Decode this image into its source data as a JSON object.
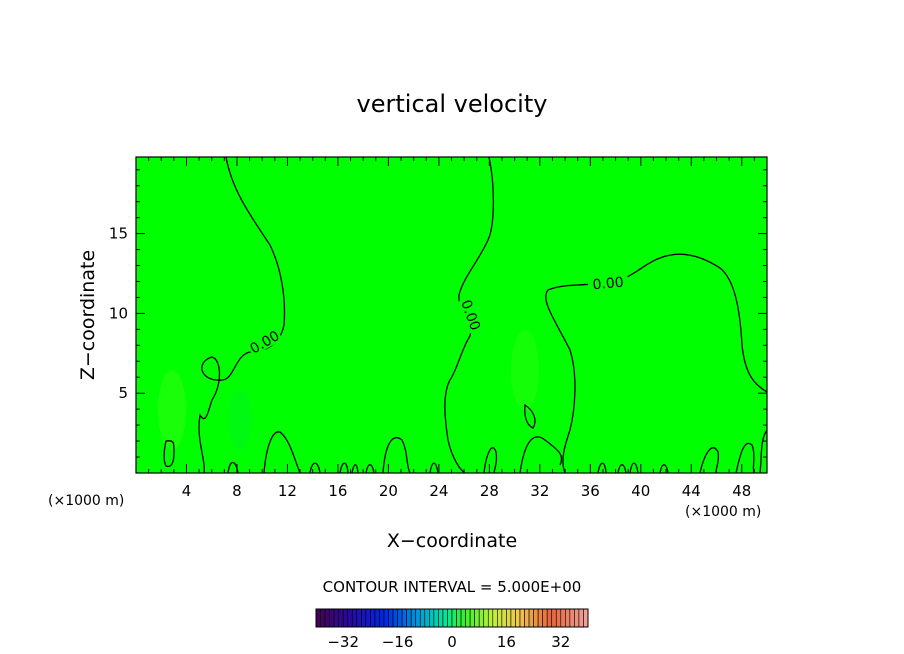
{
  "chart_data": {
    "type": "heatmap",
    "title": "vertical velocity",
    "xlabel": "X−coordinate",
    "ylabel": "Z−coordinate",
    "x_unit": "(×1000 m)",
    "x_unit_right": "(×1000 m)",
    "xlim": [
      0,
      50
    ],
    "ylim": [
      0,
      19.8
    ],
    "x_ticks": [
      4,
      8,
      12,
      16,
      20,
      24,
      28,
      32,
      36,
      40,
      44,
      48
    ],
    "y_ticks": [
      5,
      10,
      15
    ],
    "background_value": 0,
    "contour_interval_label": "CONTOUR INTERVAL = 5.000E+00",
    "contour_labels": [
      "0.00",
      "0.00",
      "0.00"
    ],
    "colorbar": {
      "ticks": [
        -32,
        -16,
        0,
        16,
        32
      ],
      "tick_labels": [
        "−32",
        "−16",
        "0",
        "16",
        "32"
      ],
      "range": [
        -40,
        40
      ]
    },
    "colors": {
      "field": "#00ff00",
      "contour": "#000000"
    }
  }
}
